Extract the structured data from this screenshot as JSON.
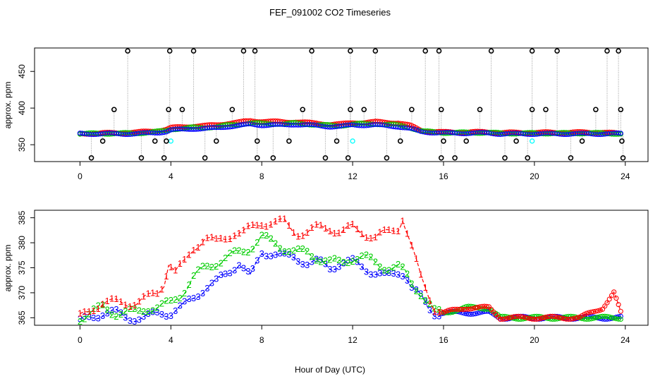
{
  "title": "FEF_091002  CO2 Timeseries",
  "xlabel": "Hour of Day (UTC)",
  "colors": {
    "s1": "#ff0000",
    "s2": "#00cd00",
    "s3": "#0000ff",
    "black": "#000000",
    "cyan": "#00ffff",
    "grey": "#bebebe"
  },
  "chart_data": [
    {
      "type": "scatter",
      "ylabel": "approx. ppm",
      "xlim": [
        -2,
        25
      ],
      "ylim": [
        327,
        482
      ],
      "xticks": [
        "0",
        "4",
        "8",
        "12",
        "16",
        "20",
        "24"
      ],
      "yticks": [
        "350",
        "400",
        "450"
      ],
      "series_points": {
        "base": [
          [
            0,
            365
          ],
          [
            0.5,
            365
          ],
          [
            1,
            365
          ],
          [
            1.5,
            365
          ],
          [
            2,
            365
          ],
          [
            2.5,
            365
          ],
          [
            3,
            366
          ],
          [
            3.5,
            367
          ],
          [
            3.8,
            368
          ],
          [
            4,
            370
          ],
          [
            4.5,
            371
          ],
          [
            5,
            372
          ],
          [
            5.5,
            372
          ],
          [
            6,
            373
          ],
          [
            6.5,
            375
          ],
          [
            7,
            376
          ],
          [
            7.5,
            378
          ],
          [
            8,
            377
          ],
          [
            8.5,
            377
          ],
          [
            9,
            377
          ],
          [
            9.5,
            378
          ],
          [
            10,
            377
          ],
          [
            10.5,
            376
          ],
          [
            11,
            375
          ],
          [
            11.5,
            375
          ],
          [
            12,
            377
          ],
          [
            12.5,
            377
          ],
          [
            13,
            377
          ],
          [
            13.5,
            376
          ],
          [
            14,
            375
          ],
          [
            14.5,
            372
          ],
          [
            15,
            368
          ],
          [
            15.5,
            367
          ],
          [
            16,
            366
          ],
          [
            17,
            366
          ],
          [
            18,
            366
          ],
          [
            18.5,
            365
          ],
          [
            19,
            365
          ],
          [
            20,
            365
          ],
          [
            21,
            365
          ],
          [
            22,
            365
          ],
          [
            23,
            365
          ],
          [
            23.8,
            365
          ]
        ],
        "red_offset": [
          [
            0,
            0
          ],
          [
            4,
            3
          ],
          [
            6,
            4
          ],
          [
            8,
            5
          ],
          [
            10,
            3
          ],
          [
            12,
            3
          ],
          [
            14,
            5
          ],
          [
            14.6,
            4
          ],
          [
            15.2,
            1
          ],
          [
            23,
            2
          ],
          [
            23.8,
            0
          ]
        ],
        "black": [
          [
            0.5,
            332
          ],
          [
            1.5,
            398
          ],
          [
            1,
            355
          ],
          [
            2.1,
            478
          ],
          [
            2.7,
            332
          ],
          [
            3.3,
            355
          ],
          [
            3.7,
            332
          ],
          [
            3.9,
            398
          ],
          [
            3.95,
            478
          ],
          [
            3.8,
            355
          ],
          [
            4.5,
            398
          ],
          [
            5,
            478
          ],
          [
            5.5,
            332
          ],
          [
            6,
            355
          ],
          [
            6.7,
            398
          ],
          [
            7.2,
            478
          ],
          [
            7.7,
            478
          ],
          [
            7.8,
            332
          ],
          [
            7.8,
            355
          ],
          [
            8.5,
            332
          ],
          [
            9.2,
            355
          ],
          [
            9.8,
            398
          ],
          [
            10.2,
            478
          ],
          [
            10.8,
            332
          ],
          [
            11.3,
            355
          ],
          [
            11.8,
            332
          ],
          [
            11.9,
            398
          ],
          [
            11.9,
            478
          ],
          [
            12.5,
            398
          ],
          [
            13,
            478
          ],
          [
            13.5,
            332
          ],
          [
            14.1,
            355
          ],
          [
            14.6,
            398
          ],
          [
            15.2,
            478
          ],
          [
            15.8,
            478
          ],
          [
            15.9,
            332
          ],
          [
            15.9,
            398
          ],
          [
            16,
            355
          ],
          [
            16.5,
            332
          ],
          [
            17,
            355
          ],
          [
            17.6,
            398
          ],
          [
            18.1,
            478
          ],
          [
            18.7,
            332
          ],
          [
            19.2,
            355
          ],
          [
            19.7,
            332
          ],
          [
            19.9,
            398
          ],
          [
            19.9,
            478
          ],
          [
            20.5,
            398
          ],
          [
            21,
            478
          ],
          [
            21.6,
            332
          ],
          [
            22.1,
            355
          ],
          [
            22.7,
            398
          ],
          [
            23.2,
            478
          ],
          [
            23.7,
            478
          ],
          [
            23.8,
            398
          ],
          [
            23.85,
            355
          ],
          [
            23.9,
            332
          ]
        ],
        "cyan": [
          [
            4,
            355
          ],
          [
            12,
            355
          ],
          [
            19.9,
            355
          ]
        ]
      }
    },
    {
      "type": "line",
      "ylabel": "approx. ppm",
      "xlim": [
        -2,
        25
      ],
      "ylim": [
        363.5,
        386.5
      ],
      "xticks": [
        "0",
        "4",
        "8",
        "12",
        "16",
        "20",
        "24"
      ],
      "yticks": [
        "365",
        "370",
        "375",
        "380",
        "385"
      ],
      "series": [
        {
          "name": "1",
          "marker": "1",
          "values": [
            [
              0,
              365
            ],
            [
              0.3,
              366
            ],
            [
              0.6,
              367
            ],
            [
              1,
              368
            ],
            [
              1.5,
              368
            ],
            [
              2,
              368
            ],
            [
              2.5,
              368
            ],
            [
              3,
              369
            ],
            [
              3.4,
              370
            ],
            [
              3.7,
              372
            ],
            [
              3.9,
              376
            ],
            [
              4.2,
              374
            ],
            [
              4.6,
              376
            ],
            [
              5,
              379
            ],
            [
              5.5,
              381
            ],
            [
              6,
              380
            ],
            [
              6.4,
              381
            ],
            [
              6.8,
              382
            ],
            [
              7.2,
              382
            ],
            [
              7.6,
              383
            ],
            [
              8,
              384
            ],
            [
              8.5,
              384
            ],
            [
              9,
              384
            ],
            [
              9.5,
              382
            ],
            [
              10,
              382
            ],
            [
              10.5,
              383
            ],
            [
              11,
              383
            ],
            [
              11.5,
              382
            ],
            [
              12,
              383
            ],
            [
              12.5,
              382
            ],
            [
              13,
              381
            ],
            [
              13.5,
              382
            ],
            [
              14,
              383
            ],
            [
              14.2,
              385
            ],
            [
              14.6,
              379
            ],
            [
              15,
              373
            ],
            [
              15.3,
              370
            ],
            [
              15.6,
              367
            ],
            [
              16,
              366
            ],
            [
              17,
              367
            ],
            [
              18,
              367
            ],
            [
              18.5,
              365
            ],
            [
              19,
              365
            ],
            [
              20,
              365
            ],
            [
              21,
              365
            ],
            [
              22,
              365
            ],
            [
              22.5,
              366
            ],
            [
              23,
              367
            ],
            [
              23.5,
              370
            ],
            [
              23.8,
              366
            ]
          ]
        },
        {
          "name": "2",
          "marker": "2",
          "values": [
            [
              0,
              365
            ],
            [
              0.5,
              366
            ],
            [
              1,
              367
            ],
            [
              1.5,
              366
            ],
            [
              2,
              366
            ],
            [
              2.5,
              366
            ],
            [
              3,
              367
            ],
            [
              3.5,
              367
            ],
            [
              4,
              368
            ],
            [
              4.5,
              370
            ],
            [
              5,
              373
            ],
            [
              5.5,
              375
            ],
            [
              6,
              376
            ],
            [
              6.5,
              377
            ],
            [
              7,
              378
            ],
            [
              7.5,
              379
            ],
            [
              8,
              381
            ],
            [
              8.5,
              380
            ],
            [
              9,
              379
            ],
            [
              9.5,
              378
            ],
            [
              10,
              378
            ],
            [
              10.5,
              377
            ],
            [
              11,
              376
            ],
            [
              11.5,
              376
            ],
            [
              12,
              377
            ],
            [
              12.5,
              377
            ],
            [
              13,
              376
            ],
            [
              13.5,
              375
            ],
            [
              14,
              375
            ],
            [
              14.3,
              374
            ],
            [
              14.6,
              372
            ],
            [
              15,
              370
            ],
            [
              15.3,
              368
            ],
            [
              15.6,
              366
            ],
            [
              16,
              366
            ],
            [
              17,
              367
            ],
            [
              18,
              367
            ],
            [
              18.5,
              365
            ],
            [
              19,
              365
            ],
            [
              20,
              365
            ],
            [
              21,
              365
            ],
            [
              22,
              365
            ],
            [
              23,
              365
            ],
            [
              23.8,
              365
            ]
          ]
        },
        {
          "name": "3",
          "marker": "3",
          "values": [
            [
              0,
              364
            ],
            [
              0.5,
              365
            ],
            [
              1,
              366
            ],
            [
              1.5,
              366
            ],
            [
              2,
              365
            ],
            [
              2.5,
              365
            ],
            [
              3,
              365
            ],
            [
              3.5,
              366
            ],
            [
              4,
              366
            ],
            [
              4.5,
              367
            ],
            [
              5,
              369
            ],
            [
              5.5,
              371
            ],
            [
              6,
              372
            ],
            [
              6.5,
              374
            ],
            [
              7,
              376
            ],
            [
              7.5,
              373
            ],
            [
              8,
              378
            ],
            [
              8.5,
              378
            ],
            [
              9,
              377
            ],
            [
              9.5,
              377
            ],
            [
              10,
              376
            ],
            [
              10.5,
              376
            ],
            [
              11,
              375
            ],
            [
              11.5,
              376
            ],
            [
              12,
              376
            ],
            [
              12.5,
              375
            ],
            [
              13,
              374
            ],
            [
              13.5,
              373
            ],
            [
              14,
              374
            ],
            [
              14.3,
              374
            ],
            [
              14.6,
              371
            ],
            [
              15,
              369
            ],
            [
              15.3,
              367
            ],
            [
              15.6,
              366
            ],
            [
              16,
              366
            ],
            [
              17,
              366
            ],
            [
              18,
              366
            ],
            [
              18.5,
              365
            ],
            [
              19,
              365
            ],
            [
              20,
              365
            ],
            [
              21,
              365
            ],
            [
              22,
              365
            ],
            [
              23,
              365
            ],
            [
              23.8,
              365
            ]
          ]
        }
      ]
    }
  ]
}
